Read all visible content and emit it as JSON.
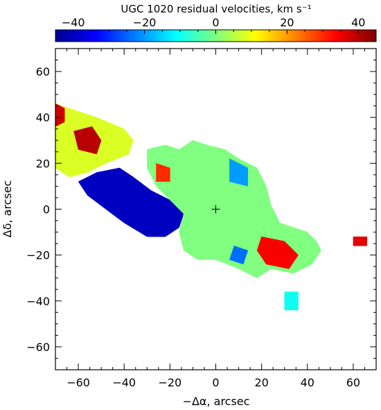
{
  "chart_data": {
    "type": "heatmap",
    "title": "UGC 1020 residual velocities, km s⁻¹",
    "xlabel": "−Δα, arcsec",
    "ylabel": "Δδ, arcsec",
    "xlim": [
      -70,
      70
    ],
    "ylim": [
      -70,
      70
    ],
    "x_ticks": [
      -60,
      -40,
      -20,
      0,
      20,
      40,
      60
    ],
    "y_ticks": [
      -60,
      -40,
      -20,
      0,
      20,
      40,
      60
    ],
    "x_tick_labels": [
      "−60",
      "−40",
      "−20",
      "0",
      "20",
      "40",
      "60"
    ],
    "y_tick_labels": [
      "−60",
      "−40",
      "−20",
      "0",
      "20",
      "40",
      "60"
    ],
    "colorbar": {
      "range": [
        -45,
        45
      ],
      "ticks": [
        -40,
        -20,
        0,
        20,
        40
      ],
      "tick_labels": [
        "−40",
        "−20",
        "0",
        "20",
        "40"
      ],
      "colormap": "jet",
      "placement": "top"
    },
    "center_marker": {
      "x": 0,
      "y": 0,
      "symbol": "+"
    },
    "grid": false,
    "regions": [
      {
        "name": "north-east arm",
        "mean_velocity": 8,
        "polygon": [
          [
            -70,
            46
          ],
          [
            -52,
            40
          ],
          [
            -40,
            35
          ],
          [
            -36,
            30
          ],
          [
            -38,
            24
          ],
          [
            -48,
            20
          ],
          [
            -56,
            16
          ],
          [
            -64,
            14
          ],
          [
            -70,
            18
          ]
        ]
      },
      {
        "name": "north-east red clump",
        "mean_velocity": 40,
        "polygon": [
          [
            -62,
            34
          ],
          [
            -54,
            36
          ],
          [
            -50,
            30
          ],
          [
            -52,
            24
          ],
          [
            -60,
            26
          ]
        ]
      },
      {
        "name": "north-east red tip",
        "mean_velocity": 38,
        "polygon": [
          [
            -70,
            46
          ],
          [
            -66,
            44
          ],
          [
            -66,
            38
          ],
          [
            -70,
            36
          ]
        ]
      },
      {
        "name": "blue approaching wedge",
        "mean_velocity": -40,
        "polygon": [
          [
            -52,
            16
          ],
          [
            -42,
            18
          ],
          [
            -36,
            14
          ],
          [
            -28,
            8
          ],
          [
            -20,
            4
          ],
          [
            -14,
            -2
          ],
          [
            -16,
            -8
          ],
          [
            -22,
            -12
          ],
          [
            -30,
            -12
          ],
          [
            -40,
            -6
          ],
          [
            -48,
            0
          ],
          [
            -56,
            6
          ],
          [
            -60,
            12
          ]
        ]
      },
      {
        "name": "central body",
        "mean_velocity": 0,
        "polygon": [
          [
            -30,
            26
          ],
          [
            -22,
            28
          ],
          [
            -16,
            26
          ],
          [
            -10,
            30
          ],
          [
            -4,
            28
          ],
          [
            4,
            26
          ],
          [
            10,
            22
          ],
          [
            18,
            18
          ],
          [
            22,
            10
          ],
          [
            24,
            2
          ],
          [
            28,
            -6
          ],
          [
            34,
            -8
          ],
          [
            40,
            -10
          ],
          [
            44,
            -14
          ],
          [
            46,
            -18
          ],
          [
            42,
            -24
          ],
          [
            34,
            -28
          ],
          [
            24,
            -26
          ],
          [
            18,
            -30
          ],
          [
            10,
            -26
          ],
          [
            0,
            -22
          ],
          [
            -8,
            -22
          ],
          [
            -14,
            -18
          ],
          [
            -16,
            -10
          ],
          [
            -14,
            -2
          ],
          [
            -20,
            4
          ],
          [
            -26,
            10
          ],
          [
            -30,
            18
          ]
        ]
      },
      {
        "name": "inner red patch",
        "mean_velocity": 30,
        "polygon": [
          [
            -26,
            20
          ],
          [
            -20,
            18
          ],
          [
            -20,
            12
          ],
          [
            -26,
            12
          ]
        ]
      },
      {
        "name": "south-west red patch",
        "mean_velocity": 34,
        "polygon": [
          [
            20,
            -12
          ],
          [
            30,
            -14
          ],
          [
            36,
            -20
          ],
          [
            32,
            -26
          ],
          [
            22,
            -24
          ],
          [
            18,
            -18
          ]
        ]
      },
      {
        "name": "north-west blue patch",
        "mean_velocity": -20,
        "polygon": [
          [
            6,
            22
          ],
          [
            14,
            18
          ],
          [
            14,
            10
          ],
          [
            6,
            12
          ]
        ]
      },
      {
        "name": "southern blue patch",
        "mean_velocity": -24,
        "polygon": [
          [
            8,
            -16
          ],
          [
            14,
            -18
          ],
          [
            12,
            -24
          ],
          [
            6,
            -22
          ]
        ]
      },
      {
        "name": "south knot",
        "mean_velocity": -10,
        "polygon": [
          [
            30,
            -36
          ],
          [
            36,
            -36
          ],
          [
            36,
            -44
          ],
          [
            30,
            -44
          ]
        ]
      },
      {
        "name": "west knot",
        "mean_velocity": 36,
        "polygon": [
          [
            60,
            -12
          ],
          [
            66,
            -12
          ],
          [
            66,
            -16
          ],
          [
            60,
            -16
          ]
        ]
      }
    ]
  }
}
